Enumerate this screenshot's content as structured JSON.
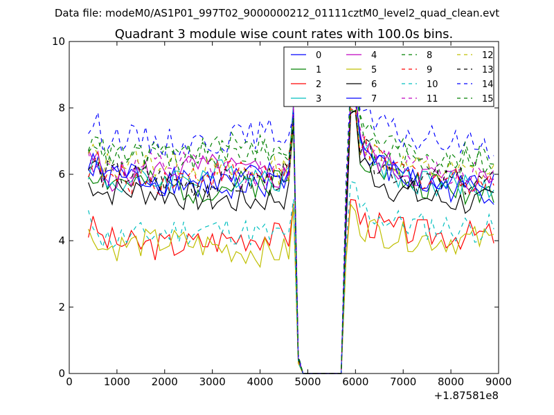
{
  "chart_data": {
    "type": "line",
    "suptitle": "Data file: modeM0/AS1P01_997T02_9000000212_01111cztM0_level2_quad_clean.evt",
    "title": "Quadrant 3 module wise count rates with 100.0s bins.",
    "xlabel": "",
    "ylabel": "",
    "x_offset_label": "+1.87581e8",
    "xlim": [
      0,
      9000
    ],
    "ylim": [
      0,
      10
    ],
    "xticks": [
      0,
      1000,
      2000,
      3000,
      4000,
      5000,
      6000,
      7000,
      8000,
      9000
    ],
    "yticks": [
      0,
      2,
      4,
      6,
      8,
      10
    ],
    "grid": false,
    "legend_location": "top-right",
    "legend_columns": 4,
    "x_range": {
      "start": 400,
      "step": 100,
      "end": 8900
    },
    "gap": {
      "from": 4900,
      "to": 5700
    },
    "series": [
      {
        "name": "0",
        "color": "#0000ff",
        "dash": "solid",
        "base_pre": 5.75,
        "base_post": 5.6,
        "peak_pre": 7.8,
        "peak_post": 8.2
      },
      {
        "name": "1",
        "color": "#008000",
        "dash": "solid",
        "base_pre": 5.7,
        "base_post": 5.5,
        "peak_pre": 7.6,
        "peak_post": 8.0
      },
      {
        "name": "2",
        "color": "#ff0000",
        "dash": "solid",
        "base_pre": 4.0,
        "base_post": 4.15,
        "peak_pre": 5.4,
        "peak_post": 5.2
      },
      {
        "name": "3",
        "color": "#00bfbf",
        "dash": "solid",
        "base_pre": 5.9,
        "base_post": 5.6,
        "peak_pre": 8.3,
        "peak_post": 8.3
      },
      {
        "name": "4",
        "color": "#bf00bf",
        "dash": "solid",
        "base_pre": 6.05,
        "base_post": 5.8,
        "peak_pre": 8.0,
        "peak_post": 8.1
      },
      {
        "name": "5",
        "color": "#bfbf00",
        "dash": "solid",
        "base_pre": 3.8,
        "base_post": 4.0,
        "peak_pre": 5.2,
        "peak_post": 5.0
      },
      {
        "name": "6",
        "color": "#000000",
        "dash": "solid",
        "base_pre": 5.35,
        "base_post": 5.1,
        "peak_pre": 7.9,
        "peak_post": 7.9
      },
      {
        "name": "7",
        "color": "#0000ff",
        "dash": "solid",
        "base_pre": 5.9,
        "base_post": 5.5,
        "peak_pre": 8.1,
        "peak_post": 8.5
      },
      {
        "name": "8",
        "color": "#008000",
        "dash": "dashed",
        "base_pre": 6.6,
        "base_post": 6.3,
        "peak_pre": 7.9,
        "peak_post": 8.4
      },
      {
        "name": "9",
        "color": "#ff0000",
        "dash": "dashed",
        "base_pre": 5.95,
        "base_post": 5.8,
        "peak_pre": 7.9,
        "peak_post": 8.0
      },
      {
        "name": "10",
        "color": "#00bfbf",
        "dash": "dashed",
        "base_pre": 4.2,
        "base_post": 4.35,
        "peak_pre": 5.5,
        "peak_post": 5.7
      },
      {
        "name": "11",
        "color": "#bf00bf",
        "dash": "dashed",
        "base_pre": 6.1,
        "base_post": 6.0,
        "peak_pre": 8.2,
        "peak_post": 8.4
      },
      {
        "name": "12",
        "color": "#bfbf00",
        "dash": "dashed",
        "base_pre": 6.2,
        "base_post": 6.0,
        "peak_pre": 8.0,
        "peak_post": 8.2
      },
      {
        "name": "13",
        "color": "#000000",
        "dash": "dashed",
        "base_pre": 5.85,
        "base_post": 5.7,
        "peak_pre": 7.8,
        "peak_post": 8.0
      },
      {
        "name": "14",
        "color": "#0000ff",
        "dash": "dashed",
        "base_pre": 7.1,
        "base_post": 6.9,
        "peak_pre": 8.0,
        "peak_post": 8.9
      },
      {
        "name": "15",
        "color": "#008000",
        "dash": "dashed",
        "base_pre": 6.7,
        "base_post": 6.5,
        "peak_pre": 7.8,
        "peak_post": 8.6
      }
    ]
  }
}
